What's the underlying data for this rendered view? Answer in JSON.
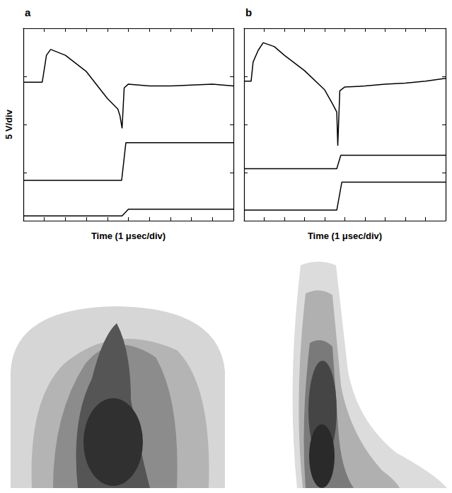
{
  "chart_data": [
    {
      "label": "a",
      "type": "line",
      "y_label": "5 V/div",
      "x_label": "Time (1 μsec/div)",
      "xlim": [
        0,
        10
      ],
      "xticks": [
        0,
        1,
        2,
        3,
        4,
        5,
        6,
        7,
        8,
        9,
        10
      ],
      "ylim": [
        0,
        20
      ],
      "yticks": [
        0,
        5,
        10,
        15,
        20
      ],
      "grid": false,
      "tick_labels": false,
      "series": [
        {
          "color": "#000000",
          "line_style": "solid",
          "x": [
            0,
            0.9,
            1.1,
            1.3,
            2.0,
            3.0,
            4.0,
            4.5,
            4.6,
            4.7,
            4.8,
            5.0,
            6.0,
            7.0,
            8.0,
            9.0,
            10.0
          ],
          "values": [
            14.4,
            14.4,
            17.2,
            17.8,
            17.2,
            15.5,
            12.7,
            11.6,
            10.9,
            9.6,
            13.8,
            14.2,
            14.0,
            14.0,
            14.1,
            14.2,
            14.0
          ]
        },
        {
          "color": "#000000",
          "line_style": "solid",
          "x": [
            0,
            4.68,
            4.88,
            10.0
          ],
          "values": [
            4.2,
            4.2,
            8.1,
            8.1
          ]
        },
        {
          "color": "#000000",
          "line_style": "solid",
          "x": [
            0,
            4.7,
            5.0,
            10.0
          ],
          "values": [
            0.5,
            0.5,
            1.2,
            1.2
          ]
        }
      ]
    },
    {
      "label": "b",
      "type": "line",
      "x_label": "Time (1 μsec/div)",
      "xlim": [
        0,
        10
      ],
      "xticks": [
        0,
        1,
        2,
        3,
        4,
        5,
        6,
        7,
        8,
        9,
        10
      ],
      "ylim": [
        0,
        20
      ],
      "yticks": [
        0,
        5,
        10,
        15,
        20
      ],
      "grid": false,
      "tick_labels": false,
      "series": [
        {
          "color": "#000000",
          "line_style": "solid",
          "x": [
            0,
            0.35,
            0.45,
            0.7,
            0.95,
            1.5,
            2.0,
            3.0,
            4.0,
            4.4,
            4.6,
            4.65,
            4.75,
            5.0,
            6.0,
            7.0,
            8.0,
            9.0,
            10.0
          ],
          "values": [
            14.5,
            14.5,
            16.5,
            17.7,
            18.5,
            18.1,
            17.2,
            15.6,
            13.6,
            12.1,
            11.3,
            7.8,
            13.5,
            13.9,
            14.0,
            14.2,
            14.3,
            14.5,
            14.8
          ]
        },
        {
          "color": "#000000",
          "line_style": "solid",
          "x": [
            0,
            4.6,
            4.8,
            10.0
          ],
          "values": [
            5.4,
            5.4,
            6.8,
            6.8
          ]
        },
        {
          "color": "#000000",
          "line_style": "solid",
          "x": [
            0,
            4.6,
            4.85,
            10.0
          ],
          "values": [
            1.1,
            1.1,
            4.0,
            4.0
          ]
        }
      ]
    }
  ]
}
